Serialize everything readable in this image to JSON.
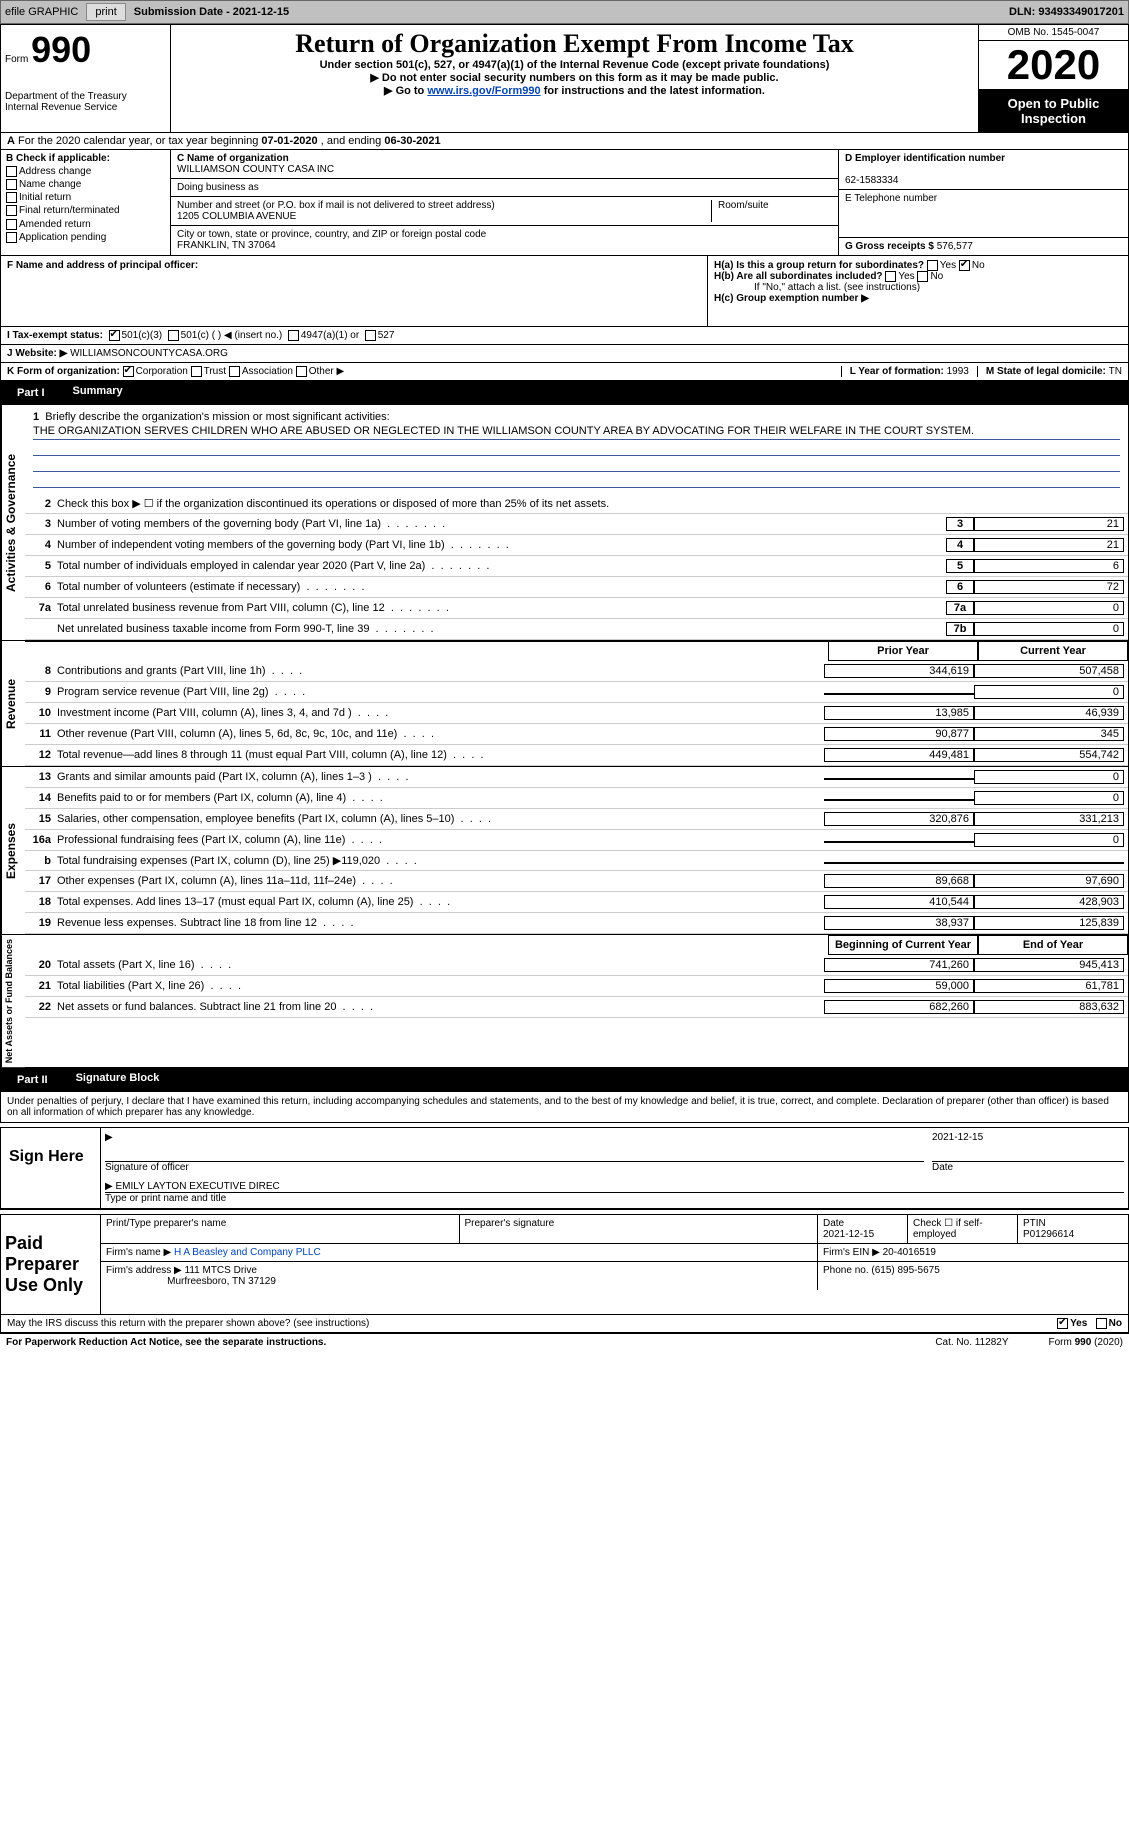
{
  "topbar": {
    "efile": "efile GRAPHIC",
    "print": "print",
    "subdate_label": "Submission Date - ",
    "subdate": "2021-12-15",
    "dln_label": "DLN: ",
    "dln": "93493349017201"
  },
  "header": {
    "form_prefix": "Form",
    "form_number": "990",
    "dept1": "Department of the Treasury",
    "dept2": "Internal Revenue Service",
    "title": "Return of Organization Exempt From Income Tax",
    "subtitle": "Under section 501(c), 527, or 4947(a)(1) of the Internal Revenue Code (except private foundations)",
    "note1": "▶ Do not enter social security numbers on this form as it may be made public.",
    "note2_prefix": "▶ Go to ",
    "note2_link": "www.irs.gov/Form990",
    "note2_suffix": " for instructions and the latest information.",
    "omb": "OMB No. 1545-0047",
    "year": "2020",
    "open": "Open to Public Inspection"
  },
  "row_a": {
    "text": "For the 2020 calendar year, or tax year beginning ",
    "begin": "07-01-2020",
    "mid": " , and ending ",
    "end": "06-30-2021"
  },
  "section_b": {
    "label": "B Check if applicable:",
    "opts": [
      "Address change",
      "Name change",
      "Initial return",
      "Final return/terminated",
      "Amended return",
      "Application pending"
    ]
  },
  "section_c": {
    "name_label": "C Name of organization",
    "name": "WILLIAMSON COUNTY CASA INC",
    "dba_label": "Doing business as",
    "addr_label": "Number and street (or P.O. box if mail is not delivered to street address)",
    "room_label": "Room/suite",
    "addr": "1205 COLUMBIA AVENUE",
    "city_label": "City or town, state or province, country, and ZIP or foreign postal code",
    "city": "FRANKLIN, TN  37064"
  },
  "section_d": {
    "label": "D Employer identification number",
    "ein": "62-1583334",
    "phone_label": "E Telephone number",
    "gross_label": "G Gross receipts $ ",
    "gross": "576,577"
  },
  "section_f": {
    "label": "F Name and address of principal officer:"
  },
  "section_h": {
    "ha": "H(a)  Is this a group return for subordinates?",
    "hb": "H(b)  Are all subordinates included?",
    "hb_note": "If \"No,\" attach a list. (see instructions)",
    "hc": "H(c)  Group exemption number ▶",
    "yes": "Yes",
    "no": "No"
  },
  "section_i": {
    "label": "I  Tax-exempt status:",
    "opt1": "501(c)(3)",
    "opt2": "501(c) (  ) ◀ (insert no.)",
    "opt3": "4947(a)(1) or",
    "opt4": "527"
  },
  "section_j": {
    "label": "J  Website: ▶ ",
    "val": "WILLIAMSONCOUNTYCASA.ORG"
  },
  "section_k": {
    "label": "K Form of organization:",
    "opts": [
      "Corporation",
      "Trust",
      "Association",
      "Other ▶"
    ]
  },
  "section_lm": {
    "l": "L Year of formation: ",
    "lval": "1993",
    "m": "M State of legal domicile: ",
    "mval": "TN"
  },
  "part1": {
    "num": "Part I",
    "title": "Summary"
  },
  "governance": {
    "label": "Activities & Governance",
    "line1_label": "Briefly describe the organization's mission or most significant activities:",
    "mission": "THE ORGANIZATION SERVES CHILDREN WHO ARE ABUSED OR NEGLECTED IN THE WILLIAMSON COUNTY AREA BY ADVOCATING FOR THEIR WELFARE IN THE COURT SYSTEM.",
    "line2": "Check this box ▶ ☐  if the organization discontinued its operations or disposed of more than 25% of its net assets.",
    "rows": [
      {
        "n": "3",
        "t": "Number of voting members of the governing body (Part VI, line 1a)",
        "box": "3",
        "v": "21"
      },
      {
        "n": "4",
        "t": "Number of independent voting members of the governing body (Part VI, line 1b)",
        "box": "4",
        "v": "21"
      },
      {
        "n": "5",
        "t": "Total number of individuals employed in calendar year 2020 (Part V, line 2a)",
        "box": "5",
        "v": "6"
      },
      {
        "n": "6",
        "t": "Total number of volunteers (estimate if necessary)",
        "box": "6",
        "v": "72"
      },
      {
        "n": "7a",
        "t": "Total unrelated business revenue from Part VIII, column (C), line 12",
        "box": "7a",
        "v": "0"
      },
      {
        "n": "",
        "t": "Net unrelated business taxable income from Form 990-T, line 39",
        "box": "7b",
        "v": "0"
      }
    ]
  },
  "dual_headers": {
    "prior": "Prior Year",
    "curr": "Current Year"
  },
  "revenue": {
    "label": "Revenue",
    "rows": [
      {
        "n": "8",
        "t": "Contributions and grants (Part VIII, line 1h)",
        "p": "344,619",
        "c": "507,458"
      },
      {
        "n": "9",
        "t": "Program service revenue (Part VIII, line 2g)",
        "p": "",
        "c": "0"
      },
      {
        "n": "10",
        "t": "Investment income (Part VIII, column (A), lines 3, 4, and 7d )",
        "p": "13,985",
        "c": "46,939"
      },
      {
        "n": "11",
        "t": "Other revenue (Part VIII, column (A), lines 5, 6d, 8c, 9c, 10c, and 11e)",
        "p": "90,877",
        "c": "345"
      },
      {
        "n": "12",
        "t": "Total revenue—add lines 8 through 11 (must equal Part VIII, column (A), line 12)",
        "p": "449,481",
        "c": "554,742"
      }
    ]
  },
  "expenses": {
    "label": "Expenses",
    "rows": [
      {
        "n": "13",
        "t": "Grants and similar amounts paid (Part IX, column (A), lines 1–3 )",
        "p": "",
        "c": "0"
      },
      {
        "n": "14",
        "t": "Benefits paid to or for members (Part IX, column (A), line 4)",
        "p": "",
        "c": "0"
      },
      {
        "n": "15",
        "t": "Salaries, other compensation, employee benefits (Part IX, column (A), lines 5–10)",
        "p": "320,876",
        "c": "331,213"
      },
      {
        "n": "16a",
        "t": "Professional fundraising fees (Part IX, column (A), line 11e)",
        "p": "",
        "c": "0"
      },
      {
        "n": "b",
        "t": "Total fundraising expenses (Part IX, column (D), line 25) ▶119,020",
        "p": "shaded",
        "c": "shaded"
      },
      {
        "n": "17",
        "t": "Other expenses (Part IX, column (A), lines 11a–11d, 11f–24e)",
        "p": "89,668",
        "c": "97,690"
      },
      {
        "n": "18",
        "t": "Total expenses. Add lines 13–17 (must equal Part IX, column (A), line 25)",
        "p": "410,544",
        "c": "428,903"
      },
      {
        "n": "19",
        "t": "Revenue less expenses. Subtract line 18 from line 12",
        "p": "38,937",
        "c": "125,839"
      }
    ]
  },
  "netassets": {
    "label": "Net Assets or Fund Balances",
    "header_prior": "Beginning of Current Year",
    "header_curr": "End of Year",
    "rows": [
      {
        "n": "20",
        "t": "Total assets (Part X, line 16)",
        "p": "741,260",
        "c": "945,413"
      },
      {
        "n": "21",
        "t": "Total liabilities (Part X, line 26)",
        "p": "59,000",
        "c": "61,781"
      },
      {
        "n": "22",
        "t": "Net assets or fund balances. Subtract line 21 from line 20",
        "p": "682,260",
        "c": "883,632"
      }
    ]
  },
  "part2": {
    "num": "Part II",
    "title": "Signature Block",
    "penalties": "Under penalties of perjury, I declare that I have examined this return, including accompanying schedules and statements, and to the best of my knowledge and belief, it is true, correct, and complete. Declaration of preparer (other than officer) is based on all information of which preparer has any knowledge."
  },
  "sign": {
    "here": "Sign Here",
    "sig_officer": "Signature of officer",
    "date_label": "Date",
    "date": "2021-12-15",
    "name": "EMILY LAYTON  EXECUTIVE DIREC",
    "name_label": "Type or print name and title"
  },
  "preparer": {
    "label": "Paid Preparer Use Only",
    "h1": "Print/Type preparer's name",
    "h2": "Preparer's signature",
    "h3": "Date",
    "date": "2021-12-15",
    "h4": "Check ☐ if self-employed",
    "h5": "PTIN",
    "ptin": "P01296614",
    "firm_name_label": "Firm's name    ▶ ",
    "firm_name": "H A Beasley and Company PLLC",
    "firm_ein_label": "Firm's EIN ▶ ",
    "firm_ein": "20-4016519",
    "firm_addr_label": "Firm's address ▶ ",
    "firm_addr1": "111 MTCS Drive",
    "firm_addr2": "Murfreesboro, TN  37129",
    "phone_label": "Phone no. ",
    "phone": "(615) 895-5675"
  },
  "footer": {
    "discuss": "May the IRS discuss this return with the preparer shown above? (see instructions)",
    "yes": "Yes",
    "no": "No",
    "paperwork": "For Paperwork Reduction Act Notice, see the separate instructions.",
    "cat": "Cat. No. 11282Y",
    "formref": "Form 990 (2020)"
  }
}
